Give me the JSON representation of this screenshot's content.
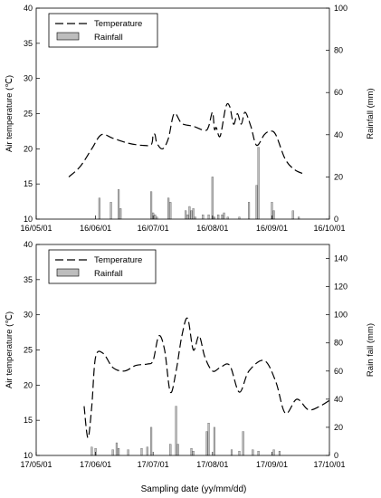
{
  "xlabel": "Sampling date (yy/mm/dd)",
  "colors": {
    "bar": "#bdbdbd",
    "line": "#000000"
  },
  "chart_data": [
    {
      "type": "line+bar",
      "legend": {
        "line": "Temperature",
        "bar": "Rainfall",
        "position": "top-left"
      },
      "ylabel_left": "Air temperature (℃)",
      "ylabel_right": "Rainfall (mm)",
      "ylim_left": [
        10,
        40
      ],
      "ylim_right": [
        0,
        100
      ],
      "yticks_left": [
        10,
        15,
        20,
        25,
        30,
        35,
        40
      ],
      "yticks_right": [
        0,
        20,
        40,
        60,
        80,
        100
      ],
      "x_tick_labels": [
        "16/05/01",
        "16/06/01",
        "16/07/01",
        "16/08/01",
        "16/09/01",
        "16/10/01"
      ],
      "xlim": [
        "2016-05-01",
        "2016-10-01"
      ],
      "temperature": [
        [
          "2016-05-18",
          16.0
        ],
        [
          "2016-05-24",
          17.5
        ],
        [
          "2016-05-30",
          20.0
        ],
        [
          "2016-06-04",
          22.0
        ],
        [
          "2016-06-10",
          21.5
        ],
        [
          "2016-06-18",
          20.8
        ],
        [
          "2016-06-25",
          20.5
        ],
        [
          "2016-06-30",
          20.6
        ],
        [
          "2016-07-01",
          22.0
        ],
        [
          "2016-07-02",
          22.0
        ],
        [
          "2016-07-03",
          20.8
        ],
        [
          "2016-07-06",
          20.0
        ],
        [
          "2016-07-09",
          21.5
        ],
        [
          "2016-07-12",
          25.0
        ],
        [
          "2016-07-16",
          23.6
        ],
        [
          "2016-07-22",
          23.2
        ],
        [
          "2016-07-28",
          22.6
        ],
        [
          "2016-07-30",
          23.2
        ],
        [
          "2016-08-01",
          25.2
        ],
        [
          "2016-08-02",
          22.8
        ],
        [
          "2016-08-03",
          23.0
        ],
        [
          "2016-08-05",
          21.8
        ],
        [
          "2016-08-08",
          26.0
        ],
        [
          "2016-08-10",
          26.0
        ],
        [
          "2016-08-12",
          23.5
        ],
        [
          "2016-08-14",
          25.0
        ],
        [
          "2016-08-16",
          23.5
        ],
        [
          "2016-08-18",
          25.2
        ],
        [
          "2016-08-21",
          23.2
        ],
        [
          "2016-08-24",
          20.5
        ],
        [
          "2016-08-28",
          22.0
        ],
        [
          "2016-08-31",
          22.5
        ],
        [
          "2016-09-03",
          22.0
        ],
        [
          "2016-09-08",
          18.5
        ],
        [
          "2016-09-13",
          17.0
        ],
        [
          "2016-09-18",
          16.4
        ]
      ],
      "rainfall": [
        [
          "2016-06-03",
          10
        ],
        [
          "2016-06-09",
          8
        ],
        [
          "2016-06-13",
          14
        ],
        [
          "2016-06-14",
          5
        ],
        [
          "2016-06-30",
          13
        ],
        [
          "2016-07-01",
          3
        ],
        [
          "2016-07-02",
          2
        ],
        [
          "2016-07-03",
          1
        ],
        [
          "2016-07-09",
          10
        ],
        [
          "2016-07-10",
          8
        ],
        [
          "2016-07-18",
          4
        ],
        [
          "2016-07-19",
          2
        ],
        [
          "2016-07-20",
          6
        ],
        [
          "2016-07-21",
          4
        ],
        [
          "2016-07-22",
          5
        ],
        [
          "2016-07-23",
          1
        ],
        [
          "2016-07-27",
          2
        ],
        [
          "2016-07-30",
          2
        ],
        [
          "2016-08-01",
          20
        ],
        [
          "2016-08-02",
          1
        ],
        [
          "2016-08-04",
          2
        ],
        [
          "2016-08-06",
          2
        ],
        [
          "2016-08-07",
          3
        ],
        [
          "2016-08-09",
          1
        ],
        [
          "2016-08-15",
          1
        ],
        [
          "2016-08-20",
          8
        ],
        [
          "2016-08-24",
          16
        ],
        [
          "2016-08-25",
          34
        ],
        [
          "2016-09-01",
          8
        ],
        [
          "2016-09-02",
          4
        ],
        [
          "2016-09-12",
          4
        ],
        [
          "2016-09-15",
          1
        ]
      ]
    },
    {
      "type": "line+bar",
      "legend": {
        "line": "Temperature",
        "bar": "Rainfall",
        "position": "top-left"
      },
      "ylabel_left": "Air temperature (℃)",
      "ylabel_right": "Rain fall (mm)",
      "ylim_left": [
        10,
        40
      ],
      "ylim_right": [
        0,
        150
      ],
      "yticks_left": [
        10,
        15,
        20,
        25,
        30,
        35,
        40
      ],
      "yticks_right": [
        0,
        20,
        40,
        60,
        80,
        100,
        120,
        140
      ],
      "x_tick_labels": [
        "17/05/01",
        "17/06/01",
        "17/07/01",
        "17/08/01",
        "17/09/01",
        "17/10/01"
      ],
      "xlim": [
        "2017-05-01",
        "2017-10-01"
      ],
      "temperature": [
        [
          "2017-05-26",
          17.0
        ],
        [
          "2017-05-28",
          12.5
        ],
        [
          "2017-05-30",
          17.0
        ],
        [
          "2017-06-01",
          24.0
        ],
        [
          "2017-06-05",
          24.5
        ],
        [
          "2017-06-10",
          22.5
        ],
        [
          "2017-06-16",
          22.0
        ],
        [
          "2017-06-22",
          22.8
        ],
        [
          "2017-06-28",
          23.0
        ],
        [
          "2017-07-01",
          23.5
        ],
        [
          "2017-07-04",
          27.0
        ],
        [
          "2017-07-07",
          25.0
        ],
        [
          "2017-07-10",
          19.0
        ],
        [
          "2017-07-13",
          22.0
        ],
        [
          "2017-07-16",
          27.0
        ],
        [
          "2017-07-19",
          29.5
        ],
        [
          "2017-07-22",
          25.0
        ],
        [
          "2017-07-25",
          27.0
        ],
        [
          "2017-07-28",
          24.0
        ],
        [
          "2017-08-01",
          22.0
        ],
        [
          "2017-08-05",
          22.5
        ],
        [
          "2017-08-10",
          22.8
        ],
        [
          "2017-08-15",
          19.0
        ],
        [
          "2017-08-20",
          22.0
        ],
        [
          "2017-08-28",
          23.5
        ],
        [
          "2017-09-03",
          20.5
        ],
        [
          "2017-09-08",
          16.0
        ],
        [
          "2017-09-14",
          18.0
        ],
        [
          "2017-09-20",
          16.5
        ],
        [
          "2017-09-26",
          17.0
        ],
        [
          "2017-10-02",
          18.0
        ]
      ],
      "rainfall": [
        [
          "2017-05-30",
          6
        ],
        [
          "2017-06-01",
          5
        ],
        [
          "2017-06-10",
          4
        ],
        [
          "2017-06-12",
          9
        ],
        [
          "2017-06-13",
          5
        ],
        [
          "2017-06-18",
          4
        ],
        [
          "2017-06-25",
          5
        ],
        [
          "2017-06-28",
          6
        ],
        [
          "2017-06-30",
          20
        ],
        [
          "2017-07-10",
          8
        ],
        [
          "2017-07-13",
          35
        ],
        [
          "2017-07-14",
          8
        ],
        [
          "2017-07-21",
          5
        ],
        [
          "2017-07-22",
          3
        ],
        [
          "2017-07-29",
          17
        ],
        [
          "2017-07-30",
          23
        ],
        [
          "2017-08-02",
          20
        ],
        [
          "2017-08-11",
          4
        ],
        [
          "2017-08-15",
          3
        ],
        [
          "2017-08-17",
          17
        ],
        [
          "2017-08-22",
          4
        ],
        [
          "2017-08-25",
          3
        ],
        [
          "2017-09-02",
          4
        ],
        [
          "2017-09-05",
          3
        ]
      ]
    }
  ]
}
